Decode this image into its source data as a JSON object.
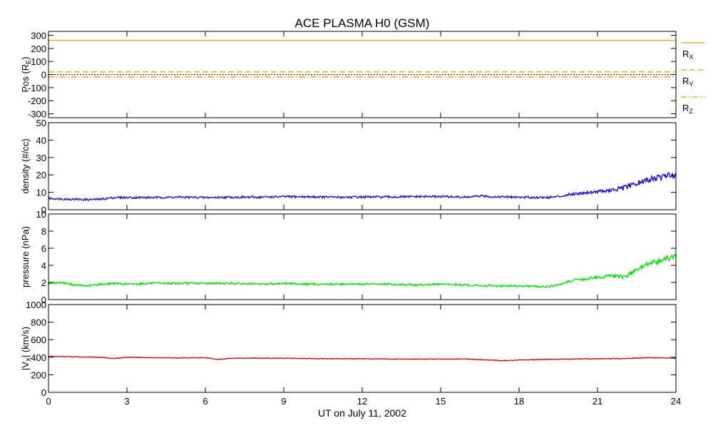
{
  "chart_data": {
    "title": "ACE PLASMA H0 (GSM)",
    "xlabel": "UT on July 11, 2002",
    "type": "line",
    "xlim": [
      0,
      24
    ],
    "xticks": [
      0,
      3,
      6,
      9,
      12,
      15,
      18,
      21,
      24
    ],
    "panels": [
      {
        "id": "pos",
        "ylabel": "Pos (R",
        "ylabel_sub": "E",
        "ylabel_close": ")",
        "ylim": [
          -330,
          330
        ],
        "yticks": [
          -300,
          -200,
          -100,
          0,
          100,
          200,
          300
        ],
        "series": [
          {
            "label": "R",
            "sub": "X",
            "color": "#e8a000",
            "style": "solid",
            "x": [
              0,
              24
            ],
            "y": [
              262,
              262
            ]
          },
          {
            "label": "R",
            "sub": "Y",
            "color": "#e8a000",
            "style": "dashed",
            "x": [
              0,
              24
            ],
            "y": [
              20,
              20
            ]
          },
          {
            "label": "R",
            "sub": "Z",
            "color": "#e8a000",
            "style": "dashdot",
            "x": [
              0,
              24
            ],
            "y": [
              -18,
              -18
            ]
          }
        ],
        "reference_line": {
          "y": 0,
          "color": "#000000",
          "style": "dotted"
        }
      },
      {
        "id": "density",
        "ylabel": "density (#/cc)",
        "ylim": [
          0,
          50
        ],
        "yticks": [
          0,
          10,
          20,
          30,
          40,
          50
        ],
        "series": [
          {
            "color": "#1c14c8",
            "x": [
              0,
              0.5,
              1,
              1.5,
              2,
              2.5,
              3,
              4,
              5,
              6,
              7,
              8,
              9,
              10,
              11,
              12,
              13,
              14,
              15,
              16,
              16.5,
              17,
              18,
              19,
              19.5,
              20,
              21,
              21.5,
              22,
              22.5,
              23,
              23.5,
              24
            ],
            "y": [
              6.5,
              6.2,
              6.0,
              5.8,
              6.0,
              7.0,
              7.0,
              7.0,
              7.2,
              7.0,
              7.2,
              7.2,
              7.5,
              7.4,
              7.2,
              7.3,
              7.3,
              7.5,
              7.6,
              7.2,
              7.8,
              7.5,
              7.2,
              7.0,
              7.5,
              9.0,
              10.5,
              11.0,
              12.5,
              15.0,
              17.5,
              19.0,
              20.5
            ]
          }
        ]
      },
      {
        "id": "pressure",
        "ylabel": "pressure (nPa)",
        "ylim": [
          0,
          10
        ],
        "yticks": [
          0,
          2,
          4,
          6,
          8,
          10
        ],
        "series": [
          {
            "color": "#10e010",
            "x": [
              0,
              0.5,
              1,
              1.5,
              2,
              2.5,
              3,
              4,
              5,
              6,
              7,
              8,
              9,
              10,
              11,
              12,
              13,
              14,
              15,
              16,
              17,
              18,
              19,
              19.5,
              20,
              21,
              21.5,
              22,
              22.5,
              23,
              23.5,
              24
            ],
            "y": [
              1.9,
              2.0,
              1.7,
              1.6,
              1.8,
              1.9,
              1.8,
              1.9,
              1.9,
              1.9,
              1.9,
              1.8,
              1.9,
              1.8,
              1.8,
              1.8,
              1.8,
              1.7,
              1.8,
              1.7,
              1.6,
              1.6,
              1.5,
              1.7,
              2.2,
              2.6,
              2.8,
              2.6,
              3.5,
              4.2,
              4.6,
              5.2
            ]
          }
        ]
      },
      {
        "id": "vx",
        "ylabel": "|V",
        "ylabel_sub": "X",
        "ylabel_close": "| (km/s)",
        "ylim": [
          0,
          1000
        ],
        "yticks": [
          0,
          200,
          400,
          600,
          800,
          1000
        ],
        "series": [
          {
            "color": "#d01010",
            "x": [
              0,
              1,
              2,
              2.5,
              3,
              4,
              5,
              6,
              6.5,
              7,
              8,
              9,
              10,
              11,
              12,
              13,
              14,
              15,
              16,
              16.5,
              17,
              17.3,
              18,
              19,
              20,
              21,
              22,
              23,
              24
            ],
            "y": [
              410,
              405,
              400,
              385,
              400,
              395,
              392,
              395,
              375,
              388,
              390,
              388,
              385,
              383,
              382,
              380,
              378,
              380,
              378,
              372,
              368,
              360,
              368,
              375,
              380,
              382,
              385,
              395,
              390
            ]
          }
        ]
      }
    ]
  }
}
